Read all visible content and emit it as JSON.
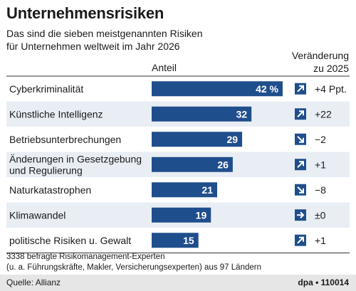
{
  "header": {
    "title": "Unternehmensrisiken",
    "subtitle_line1": "Das sind die sieben meistgenannten Risiken",
    "subtitle_line2": "für Unternehmen weltweit im Jahr 2026",
    "col_share": "Anteil",
    "col_change_line1": "Veränderung",
    "col_change_line2": "zu 2025"
  },
  "chart_data": {
    "type": "bar",
    "orientation": "horizontal",
    "title": "Unternehmensrisiken",
    "categories": [
      [
        "Cyberkriminalität"
      ],
      [
        "Künstliche Intelligenz"
      ],
      [
        "Betriebsunterbrechungen"
      ],
      [
        "Änderungen in Gesetzgebung",
        "und Regulierung"
      ],
      [
        "Naturkatastrophen"
      ],
      [
        "Klimawandel"
      ],
      [
        "politische Risiken u. Gewalt"
      ]
    ],
    "values": [
      42,
      32,
      29,
      26,
      21,
      19,
      15
    ],
    "value_labels": [
      "42 %",
      "32",
      "29",
      "26",
      "21",
      "19",
      "15"
    ],
    "changes": [
      "+4 Ppt.",
      "+22",
      "−2",
      "+1",
      "−8",
      "±0",
      "+1"
    ],
    "change_direction": [
      "up",
      "up",
      "down",
      "up",
      "down",
      "flat",
      "up"
    ],
    "unit": "%",
    "xlim": [
      0,
      46
    ],
    "bar_color": "#1f4e8c",
    "row_alt_color": "#e9eef5"
  },
  "note": {
    "line1": "3338 befragte Risikomanagement-Experten",
    "line2": "(u. a. Führungskräfte, Makler, Versicherungsexperten) aus 97 Ländern"
  },
  "footer": {
    "source": "Quelle: Allianz",
    "credit": "dpa • 110014"
  }
}
